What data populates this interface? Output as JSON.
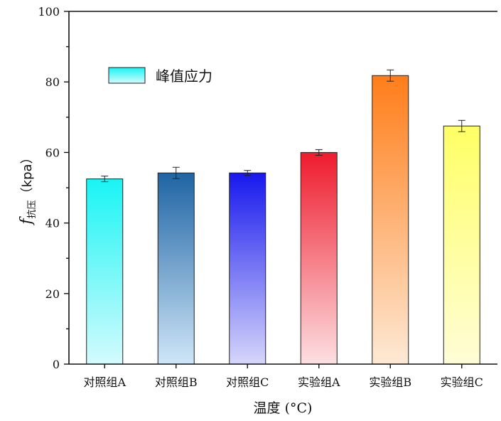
{
  "chart_data": {
    "type": "bar",
    "title": "",
    "xlabel": "温度 (°C)",
    "ylabel_main": "f",
    "ylabel_sub": "抗压",
    "ylabel_unit": "（kpa）",
    "ylim": [
      0,
      100
    ],
    "yticks": [
      0,
      20,
      40,
      60,
      80,
      100
    ],
    "grid": false,
    "legend": {
      "label": "峰值应力",
      "position": "top-left"
    },
    "categories": [
      "对照组A",
      "对照组B",
      "对照组C",
      "实验组A",
      "实验组B",
      "实验组C"
    ],
    "series": [
      {
        "name": "峰值应力",
        "values": [
          52.5,
          54.2,
          54.2,
          60.0,
          81.8,
          67.5
        ],
        "errors": [
          0.8,
          1.6,
          0.7,
          0.8,
          1.6,
          1.6
        ]
      }
    ],
    "bar_colors": [
      {
        "top": "#19f4f4",
        "bottom": "#d4fbfd"
      },
      {
        "top": "#1f64a4",
        "bottom": "#cfe6f8"
      },
      {
        "top": "#1818ee",
        "bottom": "#d6d6fb"
      },
      {
        "top": "#ee1b2d",
        "bottom": "#fde0e2"
      },
      {
        "top": "#ff7d19",
        "bottom": "#fde9d5"
      },
      {
        "top": "#ffff66",
        "bottom": "#fffdd6"
      }
    ],
    "legend_color": {
      "top": "#19f4f4",
      "bottom": "#d4fbfd"
    }
  }
}
